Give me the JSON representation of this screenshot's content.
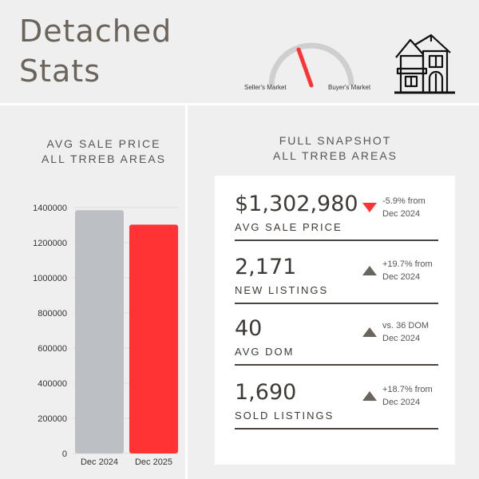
{
  "header": {
    "title_line1": "Detached",
    "title_line2": "Stats",
    "gauge": {
      "left_label": "Seller's Market",
      "right_label": "Buyer's Market"
    },
    "house_icon": "house-icon"
  },
  "left_panel": {
    "heading_line1": "AVG SALE PRICE",
    "heading_line2": "ALL TRREB AREAS"
  },
  "right_panel": {
    "heading_line1": "FULL SNAPSHOT",
    "heading_line2": "ALL TRREB AREAS",
    "stats": [
      {
        "value": "$1,302,980",
        "label": "AVG SALE PRICE",
        "direction": "down",
        "change_line1": "-5.9% from",
        "change_line2": "Dec 2024"
      },
      {
        "value": "2,171",
        "label": "NEW LISTINGS",
        "direction": "up",
        "change_line1": "+19.7% from",
        "change_line2": "Dec 2024"
      },
      {
        "value": "40",
        "label": "AVG DOM",
        "direction": "up",
        "change_line1": "vs. 36 DOM",
        "change_line2": "Dec 2024"
      },
      {
        "value": "1,690",
        "label": "SOLD LISTINGS",
        "direction": "up",
        "change_line1": "+18.7% from",
        "change_line2": "Dec 2024"
      }
    ]
  },
  "colors": {
    "bar_2024": "#bcc0c4",
    "bar_2025": "#ff3333",
    "title": "#6b645c",
    "arrow_down": "#ff3333",
    "arrow_up": "#6b645c"
  },
  "chart_data": {
    "type": "bar",
    "categories": [
      "Dec 2024",
      "Dec 2025"
    ],
    "values": [
      1385000,
      1302980
    ],
    "ylim": [
      0,
      1400000
    ],
    "yticks": [
      0,
      200000,
      400000,
      600000,
      800000,
      1000000,
      1200000,
      1400000
    ],
    "ytick_labels": [
      "0",
      "200000",
      "400000",
      "600000",
      "800000",
      "1000000",
      "1200000",
      "1400000"
    ],
    "grid": true,
    "legend": "none",
    "title": "",
    "xlabel": "",
    "ylabel": ""
  }
}
